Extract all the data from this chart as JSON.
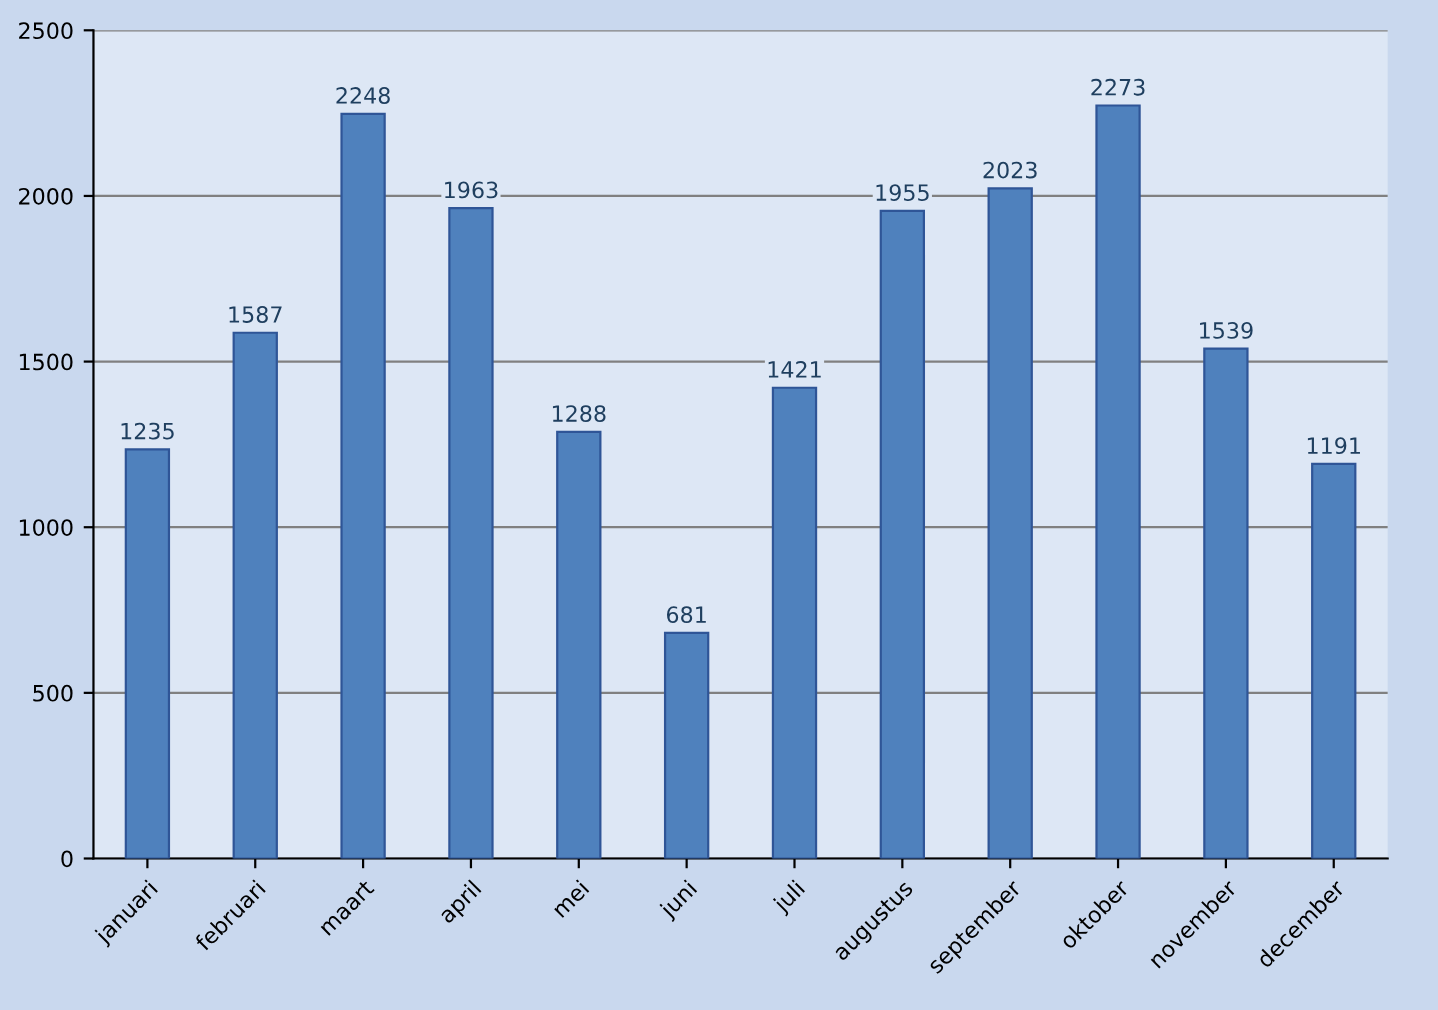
{
  "chart_data": {
    "type": "bar",
    "categories": [
      "januari",
      "februari",
      "maart",
      "april",
      "mei",
      "juni",
      "juli",
      "augustus",
      "september",
      "oktober",
      "november",
      "december"
    ],
    "values": [
      1235,
      1587,
      2248,
      1963,
      1288,
      681,
      1421,
      1955,
      2023,
      2273,
      1539,
      1191
    ],
    "color": "#4f81bd",
    "ylim": [
      0,
      2500
    ],
    "yticks": [
      0,
      500,
      1000,
      1500,
      2000,
      2500
    ],
    "grid": "y",
    "data_labels": true,
    "legend": false
  }
}
